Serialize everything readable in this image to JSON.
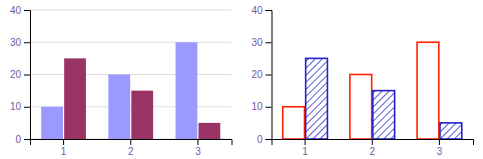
{
  "chart_data": [
    {
      "type": "bar",
      "categories": [
        "1",
        "2",
        "3"
      ],
      "series": [
        {
          "color": "#9999FF",
          "values": [
            10,
            20,
            30
          ]
        },
        {
          "color": "#993366",
          "values": [
            25,
            15,
            5
          ]
        }
      ],
      "ylim": [
        0,
        40
      ],
      "yticks": [
        0,
        10,
        20,
        30,
        40
      ],
      "grid": true
    },
    {
      "type": "bar",
      "categories": [
        "1",
        "2",
        "3"
      ],
      "series": [
        {
          "color": "#FF2200",
          "values": [
            10,
            20,
            30
          ]
        },
        {
          "color": "#2222CC",
          "values": [
            25,
            15,
            5
          ]
        }
      ],
      "ylim": [
        0,
        40
      ],
      "yticks": [
        0,
        10,
        20,
        30,
        40
      ],
      "grid": false
    }
  ]
}
